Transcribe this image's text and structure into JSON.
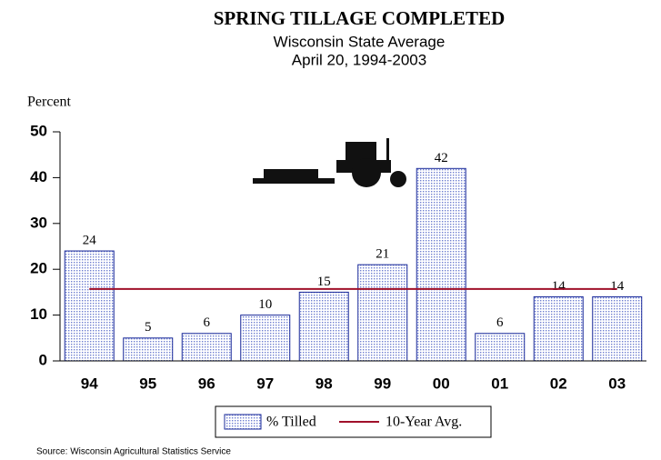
{
  "chart_data": {
    "type": "bar",
    "title": "SPRING TILLAGE COMPLETED",
    "subtitle": [
      "Wisconsin State Average",
      "April 20, 1994-2003"
    ],
    "y_label": "Percent",
    "categories": [
      "94",
      "95",
      "96",
      "97",
      "98",
      "99",
      "00",
      "01",
      "02",
      "03"
    ],
    "series": [
      {
        "name": "% Tilled",
        "color": "#9aa6e0",
        "values": [
          24,
          5,
          6,
          10,
          15,
          21,
          42,
          6,
          14,
          14
        ]
      }
    ],
    "average": {
      "name": "10-Year Avg.",
      "color": "#a0102a",
      "value": 15.7
    },
    "ylim": [
      0,
      50
    ],
    "yticks": [
      0,
      10,
      20,
      30,
      40,
      50
    ],
    "source": "Source: Wisconsin Agricultural Statistics Service"
  }
}
